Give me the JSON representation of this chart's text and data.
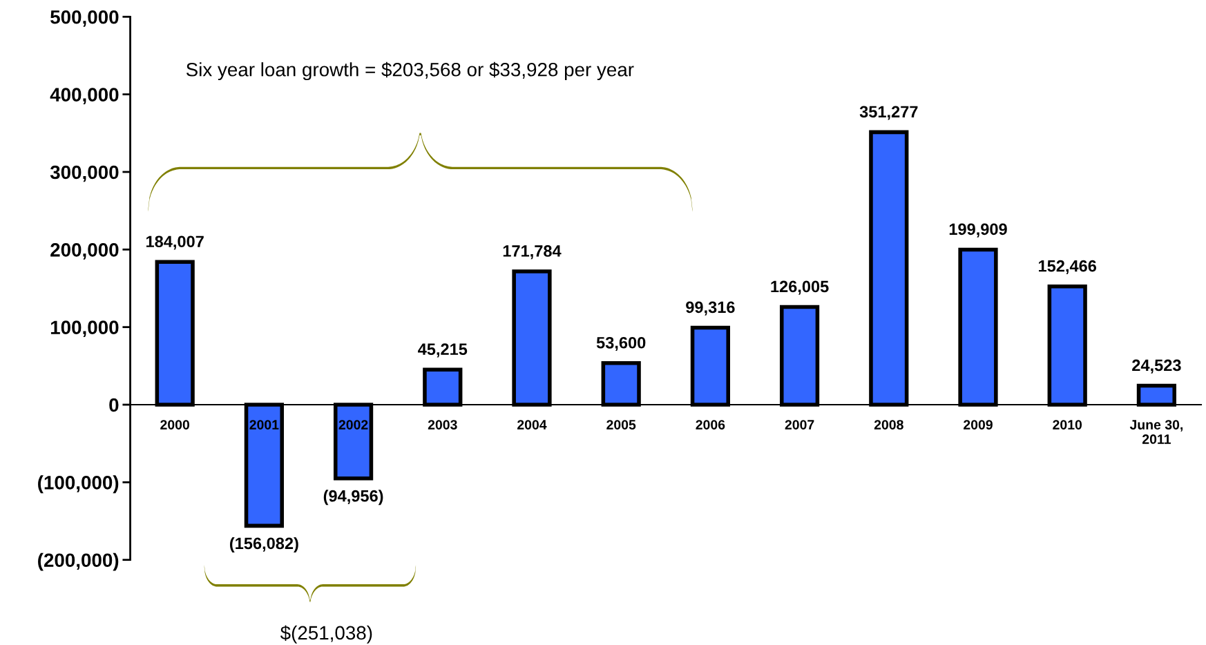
{
  "chart_data": {
    "type": "bar",
    "categories": [
      "2000",
      "2001",
      "2002",
      "2003",
      "2004",
      "2005",
      "2006",
      "2007",
      "2008",
      "2009",
      "2010",
      "June 30,\n2011"
    ],
    "series": [
      {
        "color": "#3366ff",
        "values": [
          184007,
          -156082,
          -94956,
          45215,
          171784,
          53600,
          99316,
          126005,
          351277,
          199909,
          152466,
          24523
        ],
        "value_labels": [
          "184,007",
          "(156,082)",
          "(94,956)",
          "45,215",
          "171,784",
          "53,600",
          "99,316",
          "126,005",
          "351,277",
          "199,909",
          "152,466",
          "24,523"
        ]
      }
    ],
    "ylim": [
      -200000,
      500000
    ],
    "yticks": [
      {
        "value": -200000,
        "label": "(200,000)"
      },
      {
        "value": -100000,
        "label": "(100,000)"
      },
      {
        "value": 0,
        "label": "0"
      },
      {
        "value": 100000,
        "label": "100,000"
      },
      {
        "value": 200000,
        "label": "200,000"
      },
      {
        "value": 300000,
        "label": "300,000"
      },
      {
        "value": 400000,
        "label": "400,000"
      },
      {
        "value": 500000,
        "label": "500,000"
      }
    ],
    "annotations": [
      "Six year loan growth = $203,568 or $33,928 per year",
      "$(251,038)"
    ],
    "grid": false,
    "legend": false
  }
}
